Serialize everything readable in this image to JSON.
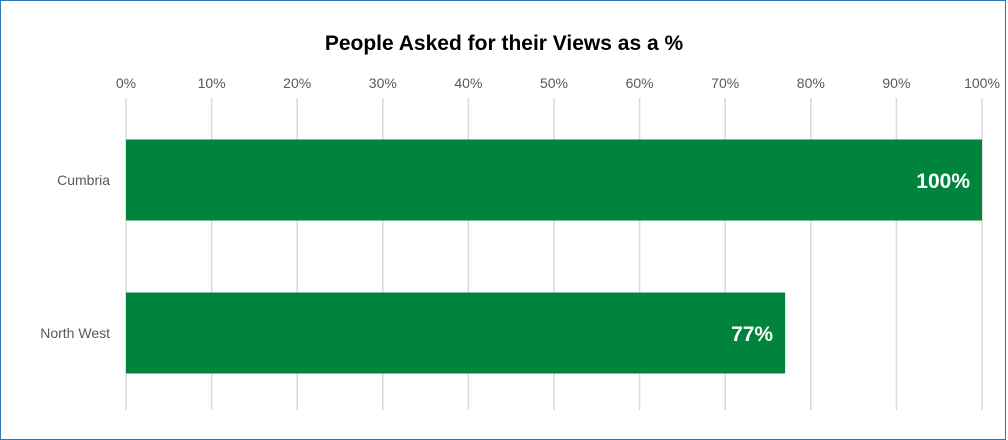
{
  "chart_data": {
    "type": "bar",
    "orientation": "horizontal",
    "title": "People Asked for their Views as a %",
    "categories": [
      "Cumbria",
      "North West"
    ],
    "values": [
      100,
      77
    ],
    "data_labels": [
      "100%",
      "77%"
    ],
    "xlim": [
      0,
      100
    ],
    "xticks": [
      0,
      10,
      20,
      30,
      40,
      50,
      60,
      70,
      80,
      90,
      100
    ],
    "xtick_labels": [
      "0%",
      "10%",
      "20%",
      "30%",
      "40%",
      "50%",
      "60%",
      "70%",
      "80%",
      "90%",
      "100%"
    ],
    "axis_position": "top",
    "grid": true,
    "legend": "none",
    "bar_color": "#00843D",
    "grid_color": "#D9D9D9",
    "border_color": "#2E75B6"
  }
}
